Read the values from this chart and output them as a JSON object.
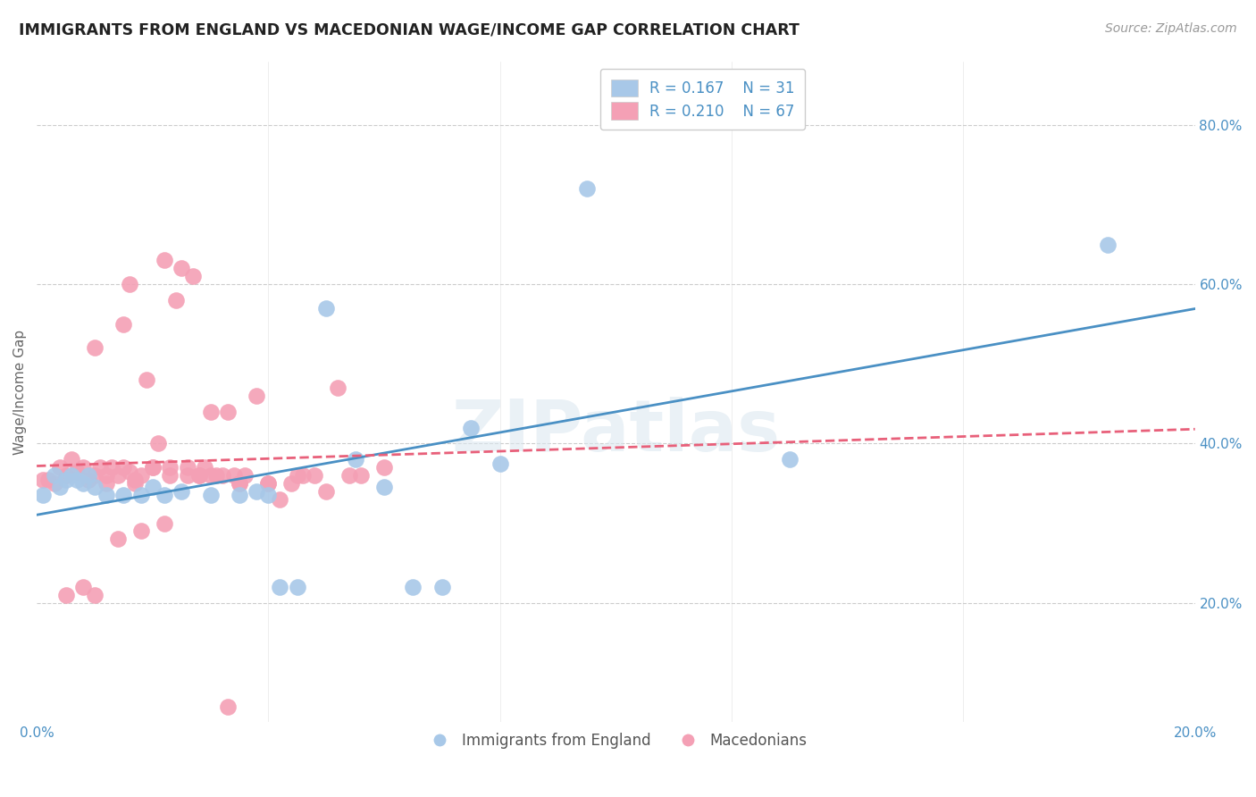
{
  "title": "IMMIGRANTS FROM ENGLAND VS MACEDONIAN WAGE/INCOME GAP CORRELATION CHART",
  "source": "Source: ZipAtlas.com",
  "ylabel": "Wage/Income Gap",
  "yticks": [
    0.2,
    0.4,
    0.6,
    0.8
  ],
  "ytick_labels": [
    "20.0%",
    "40.0%",
    "60.0%",
    "80.0%"
  ],
  "xlim": [
    0.0,
    0.2
  ],
  "ylim": [
    0.05,
    0.88
  ],
  "legend_r_blue": "0.167",
  "legend_n_blue": "31",
  "legend_r_pink": "0.210",
  "legend_n_pink": "67",
  "legend_label_blue": "Immigrants from England",
  "legend_label_pink": "Macedonians",
  "blue_color": "#a8c8e8",
  "pink_color": "#f4a0b5",
  "blue_line_color": "#4a90c4",
  "pink_line_color": "#e8607a",
  "watermark": "ZIPatlas",
  "blue_x": [
    0.001,
    0.003,
    0.004,
    0.005,
    0.006,
    0.007,
    0.008,
    0.009,
    0.01,
    0.012,
    0.015,
    0.018,
    0.02,
    0.022,
    0.025,
    0.03,
    0.035,
    0.038,
    0.04,
    0.042,
    0.045,
    0.05,
    0.055,
    0.06,
    0.065,
    0.07,
    0.075,
    0.08,
    0.095,
    0.13,
    0.185
  ],
  "blue_y": [
    0.335,
    0.36,
    0.345,
    0.355,
    0.36,
    0.355,
    0.35,
    0.36,
    0.345,
    0.335,
    0.335,
    0.335,
    0.345,
    0.335,
    0.34,
    0.335,
    0.335,
    0.34,
    0.335,
    0.22,
    0.22,
    0.57,
    0.38,
    0.345,
    0.22,
    0.22,
    0.42,
    0.375,
    0.72,
    0.38,
    0.65
  ],
  "pink_x": [
    0.001,
    0.002,
    0.003,
    0.004,
    0.005,
    0.006,
    0.007,
    0.008,
    0.009,
    0.01,
    0.01,
    0.011,
    0.012,
    0.013,
    0.014,
    0.015,
    0.015,
    0.016,
    0.016,
    0.017,
    0.018,
    0.019,
    0.02,
    0.02,
    0.021,
    0.022,
    0.023,
    0.024,
    0.025,
    0.026,
    0.027,
    0.028,
    0.029,
    0.03,
    0.031,
    0.032,
    0.033,
    0.034,
    0.035,
    0.036,
    0.038,
    0.04,
    0.042,
    0.044,
    0.046,
    0.048,
    0.05,
    0.052,
    0.054,
    0.056,
    0.06,
    0.005,
    0.008,
    0.01,
    0.014,
    0.018,
    0.022,
    0.026,
    0.03,
    0.035,
    0.04,
    0.045,
    0.012,
    0.017,
    0.023,
    0.028,
    0.033
  ],
  "pink_y": [
    0.355,
    0.355,
    0.35,
    0.37,
    0.36,
    0.38,
    0.365,
    0.37,
    0.355,
    0.36,
    0.52,
    0.37,
    0.35,
    0.37,
    0.36,
    0.55,
    0.37,
    0.365,
    0.6,
    0.355,
    0.36,
    0.48,
    0.37,
    0.37,
    0.4,
    0.63,
    0.37,
    0.58,
    0.62,
    0.37,
    0.61,
    0.36,
    0.37,
    0.44,
    0.36,
    0.36,
    0.44,
    0.36,
    0.35,
    0.36,
    0.46,
    0.35,
    0.33,
    0.35,
    0.36,
    0.36,
    0.34,
    0.47,
    0.36,
    0.36,
    0.37,
    0.21,
    0.22,
    0.21,
    0.28,
    0.29,
    0.3,
    0.36,
    0.36,
    0.35,
    0.35,
    0.36,
    0.36,
    0.35,
    0.36,
    0.36,
    0.07
  ]
}
